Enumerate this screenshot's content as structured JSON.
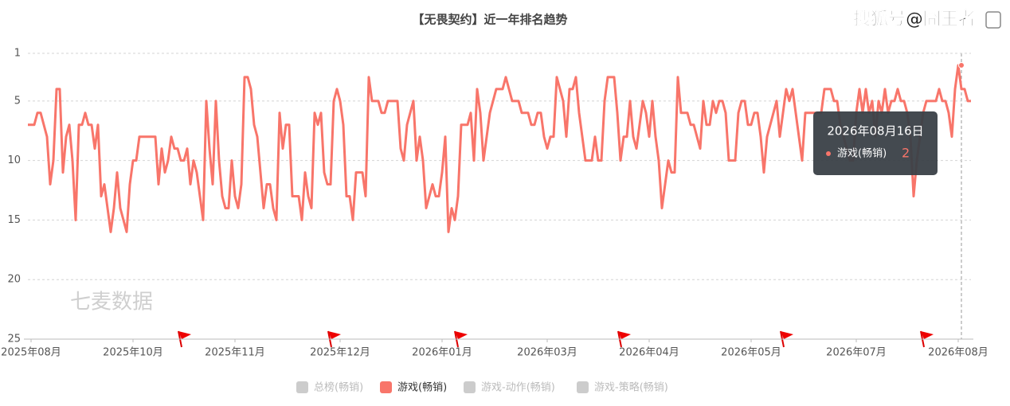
{
  "chart_data": {
    "type": "line",
    "title": "【无畏契约】近一年排名趋势",
    "watermark": "七麦数据",
    "source": "搜狐号@囧王者",
    "series": [
      {
        "name": "游戏(畅销)",
        "color": "#f8756a",
        "values": [
          7,
          7,
          7,
          6,
          6,
          7,
          8,
          12,
          10,
          4,
          4,
          11,
          8,
          7,
          10,
          15,
          7,
          7,
          6,
          7,
          7,
          9,
          7,
          13,
          12,
          14,
          16,
          14,
          11,
          14,
          15,
          16,
          12,
          10,
          10,
          8,
          8,
          8,
          8,
          8,
          8,
          12,
          9,
          11,
          10,
          8,
          9,
          9,
          10,
          10,
          9,
          12,
          10,
          11,
          13,
          15,
          5,
          9,
          12,
          5,
          10,
          13,
          14,
          14,
          10,
          13,
          14,
          12,
          3,
          3,
          4,
          7,
          8,
          11,
          14,
          12,
          12,
          14,
          15,
          6,
          9,
          7,
          7,
          13,
          13,
          13,
          15,
          11,
          13,
          14,
          6,
          7,
          6,
          11,
          12,
          12,
          5,
          4,
          5,
          7,
          13,
          13,
          15,
          11,
          11,
          11,
          13,
          3,
          5,
          5,
          5,
          6,
          6,
          5,
          5,
          5,
          5,
          9,
          10,
          7,
          6,
          5,
          10,
          8,
          10,
          14,
          13,
          12,
          13,
          13,
          11,
          8,
          16,
          14,
          15,
          13,
          7,
          7,
          7,
          6,
          10,
          4,
          6,
          10,
          8,
          6,
          5,
          4,
          4,
          4,
          3,
          4,
          5,
          5,
          5,
          6,
          6,
          6,
          7,
          7,
          6,
          6,
          8,
          9,
          8,
          8,
          3,
          4,
          5,
          8,
          4,
          4,
          3,
          6,
          8,
          10,
          10,
          10,
          8,
          10,
          10,
          5,
          3,
          3,
          3,
          6,
          10,
          8,
          8,
          5,
          8,
          9,
          7,
          5,
          6,
          8,
          5,
          8,
          10,
          14,
          12,
          10,
          11,
          11,
          3,
          6,
          6,
          6,
          7,
          7,
          8,
          9,
          5,
          7,
          7,
          5,
          6,
          5,
          5,
          6,
          10,
          10,
          10,
          6,
          5,
          5,
          7,
          7,
          6,
          6,
          8,
          11,
          8,
          7,
          6,
          5,
          8,
          6,
          4,
          5,
          4,
          6,
          8,
          10,
          6,
          6,
          6,
          6,
          6,
          6,
          4,
          4,
          4,
          5,
          5,
          7,
          8,
          9,
          10,
          10,
          6,
          4,
          6,
          4,
          6,
          5,
          8,
          5,
          6,
          4,
          6,
          5,
          5,
          4,
          5,
          5,
          6,
          8,
          13,
          10,
          8,
          6,
          5,
          5,
          5,
          5,
          4,
          5,
          5,
          6,
          8,
          4,
          2,
          4,
          4,
          5,
          5
        ]
      }
    ],
    "legend": [
      {
        "name": "总榜(畅销)",
        "color": "#cccccc"
      },
      {
        "name": "游戏(畅销)",
        "color": "#f8756a"
      },
      {
        "name": "游戏-动作(畅销)",
        "color": "#cccccc"
      },
      {
        "name": "游戏-策略(畅销)",
        "color": "#cccccc"
      }
    ],
    "ylim": [
      1,
      25
    ],
    "y_inverted": true,
    "yticks": [
      1,
      5,
      10,
      15,
      20,
      25
    ],
    "grid": true,
    "xlim": [
      0,
      296
    ],
    "xticks": [
      {
        "value": 1,
        "label": "2025年08月"
      },
      {
        "value": 33,
        "label": "2025年10月"
      },
      {
        "value": 65,
        "label": "2025年11月"
      },
      {
        "value": 98,
        "label": "2025年12月"
      },
      {
        "value": 130,
        "label": "2026年01月"
      },
      {
        "value": 163,
        "label": "2026年03月"
      },
      {
        "value": 195,
        "label": "2026年04月"
      },
      {
        "value": 227,
        "label": "2026年05月"
      },
      {
        "value": 260,
        "label": "2026年07月"
      },
      {
        "value": 292,
        "label": "2026年08月"
      }
    ],
    "tooltip": {
      "date": "2026年08月16日",
      "series": "游戏(畅销)",
      "value": 2
    }
  }
}
